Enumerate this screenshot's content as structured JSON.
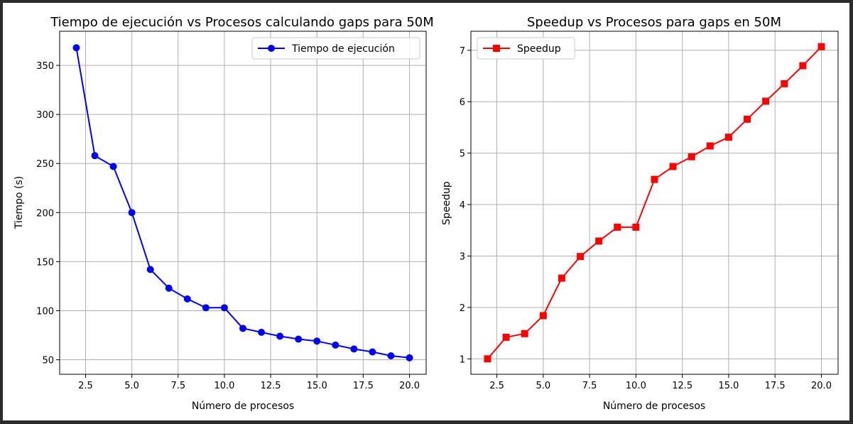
{
  "chart_data": [
    {
      "type": "line",
      "title": "Tiempo de ejecución vs Procesos calculando gaps para 50M",
      "xlabel": "Número de procesos",
      "ylabel": "Tiempo (s)",
      "x": [
        2,
        3,
        4,
        5,
        6,
        7,
        8,
        9,
        10,
        11,
        12,
        13,
        14,
        15,
        16,
        17,
        18,
        19,
        20
      ],
      "series": [
        {
          "name": "Tiempo de ejecución",
          "color": "#0000ff",
          "marker": "circle",
          "values": [
            368,
            258,
            247,
            200,
            142,
            123,
            112,
            103,
            103,
            82,
            78,
            74,
            71,
            69,
            65,
            61,
            58,
            54,
            52
          ]
        }
      ],
      "xlim": [
        1.1,
        20.9
      ],
      "ylim": [
        35.2,
        384.8
      ],
      "xticks": [
        2.5,
        5.0,
        7.5,
        10.0,
        12.5,
        15.0,
        17.5,
        20.0
      ],
      "xtick_labels": [
        "2.5",
        "5.0",
        "7.5",
        "10.0",
        "12.5",
        "15.0",
        "17.5",
        "20.0"
      ],
      "yticks": [
        50,
        100,
        150,
        200,
        250,
        300,
        350
      ],
      "ytick_labels": [
        "50",
        "100",
        "150",
        "200",
        "250",
        "300",
        "350"
      ],
      "grid": true,
      "legend": "top-right"
    },
    {
      "type": "line",
      "title": "Speedup vs Procesos para gaps en 50M",
      "xlabel": "Número de procesos",
      "ylabel": "Speedup",
      "x": [
        2,
        3,
        4,
        5,
        6,
        7,
        8,
        9,
        10,
        11,
        12,
        13,
        14,
        15,
        16,
        17,
        18,
        19,
        20
      ],
      "series": [
        {
          "name": "Speedup",
          "color": "#ff0000",
          "marker": "square",
          "values": [
            1.0,
            1.42,
            1.49,
            1.84,
            2.57,
            2.99,
            3.29,
            3.56,
            3.56,
            4.49,
            4.74,
            4.93,
            5.14,
            5.31,
            5.66,
            6.01,
            6.35,
            6.7,
            7.07
          ]
        }
      ],
      "xlim": [
        1.1,
        20.9
      ],
      "ylim": [
        0.7,
        7.37
      ],
      "xticks": [
        2.5,
        5.0,
        7.5,
        10.0,
        12.5,
        15.0,
        17.5,
        20.0
      ],
      "xtick_labels": [
        "2.5",
        "5.0",
        "7.5",
        "10.0",
        "12.5",
        "15.0",
        "17.5",
        "20.0"
      ],
      "yticks": [
        1,
        2,
        3,
        4,
        5,
        6,
        7
      ],
      "ytick_labels": [
        "1",
        "2",
        "3",
        "4",
        "5",
        "6",
        "7"
      ],
      "grid": true,
      "legend": "top-left"
    }
  ]
}
